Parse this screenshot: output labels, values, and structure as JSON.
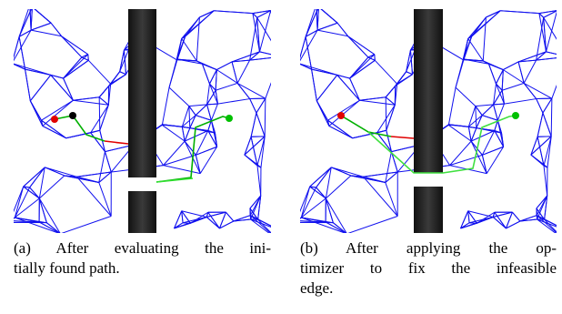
{
  "subfigures": [
    {
      "caption": [
        "(a) After evaluating the ini-",
        "tially found path."
      ]
    },
    {
      "caption": [
        "(b) After applying the op-",
        "timizer to fix the infeasible",
        "edge."
      ]
    }
  ]
}
